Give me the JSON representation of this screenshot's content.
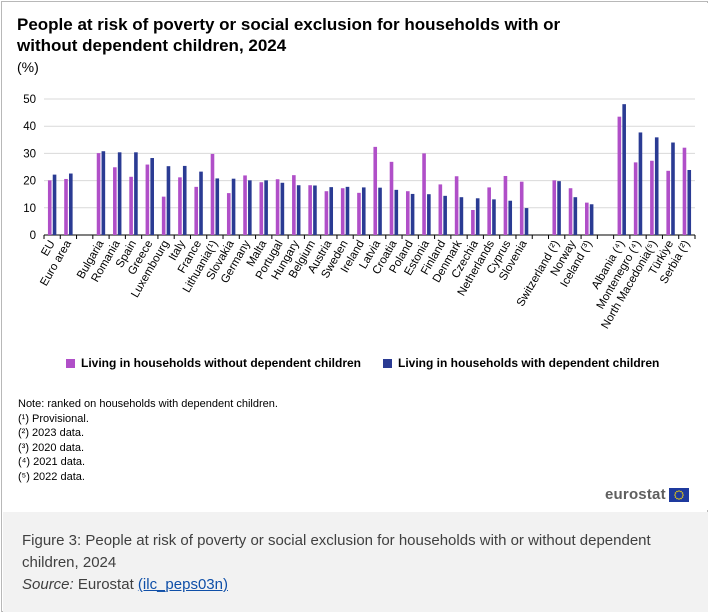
{
  "chart_data": {
    "type": "bar",
    "title": "People at risk of poverty or social exclusion for households with or without dependent children, 2024",
    "unit": "(%)",
    "ylim": [
      0,
      50
    ],
    "yticks": [
      0,
      10,
      20,
      30,
      40,
      50
    ],
    "categories": [
      "EU",
      "Euro area",
      "",
      "Bulgaria",
      "Romania",
      "Spain",
      "Greece",
      "Luxembourg",
      "Italy",
      "France",
      "Lithuania(¹)",
      "Slovakia",
      "Germany",
      "Malta",
      "Portugal",
      "Hungary",
      "Belgium",
      "Austria",
      "Sweden",
      "Ireland",
      "Latvia",
      "Croatia",
      "Poland",
      "Estonia",
      "Finland",
      "Denmark",
      "Czechia",
      "Netherlands",
      "Cyprus",
      "Slovenia",
      "",
      "Switzerland (²)",
      "Norway",
      "Iceland (³)",
      "",
      "Albania (⁴)",
      "Montenegro (⁴)",
      "North Macedonia(⁵)",
      "Türkiye",
      "Serbia (²)"
    ],
    "series": [
      {
        "name": "Living in households without dependent children",
        "color": "#b04fc8",
        "values": [
          20.1,
          20.6,
          null,
          30.1,
          24.9,
          21.4,
          25.9,
          14.1,
          21.2,
          17.7,
          29.8,
          15.4,
          21.9,
          19.4,
          20.5,
          22.0,
          18.3,
          16.1,
          17.2,
          15.5,
          32.4,
          26.9,
          16.1,
          30.0,
          18.6,
          21.6,
          9.2,
          17.5,
          21.7,
          19.6,
          null,
          20.1,
          17.2,
          11.9,
          null,
          43.5,
          26.7,
          27.3,
          23.6,
          32.1
        ]
      },
      {
        "name": "Living in households with dependent children",
        "color": "#2a3b93",
        "values": [
          22.2,
          22.6,
          null,
          30.8,
          30.4,
          30.4,
          28.3,
          25.3,
          25.4,
          23.3,
          20.8,
          20.7,
          20.1,
          20.1,
          19.2,
          18.3,
          18.2,
          17.6,
          17.7,
          17.5,
          17.4,
          16.6,
          15.1,
          15.0,
          14.4,
          13.9,
          13.5,
          13.1,
          12.6,
          9.9,
          null,
          19.8,
          13.9,
          11.3,
          null,
          48.1,
          37.7,
          35.9,
          34.0,
          23.9
        ]
      }
    ],
    "legend_position": "bottom",
    "grid": "horizontal"
  },
  "notes": [
    "Note: ranked on households with dependent children.",
    "(¹) Provisional.",
    "(²) 2023 data.",
    "(³) 2020 data.",
    "(⁴) 2021 data.",
    "(⁵) 2022 data."
  ],
  "logo": {
    "text": "eurostat"
  },
  "caption": {
    "text": "Figure 3: People at risk of poverty or social exclusion for households with or without dependent children, 2024",
    "source_label": "Source:",
    "source_text": "Eurostat",
    "source_link": "(ilc_peps03n)"
  }
}
